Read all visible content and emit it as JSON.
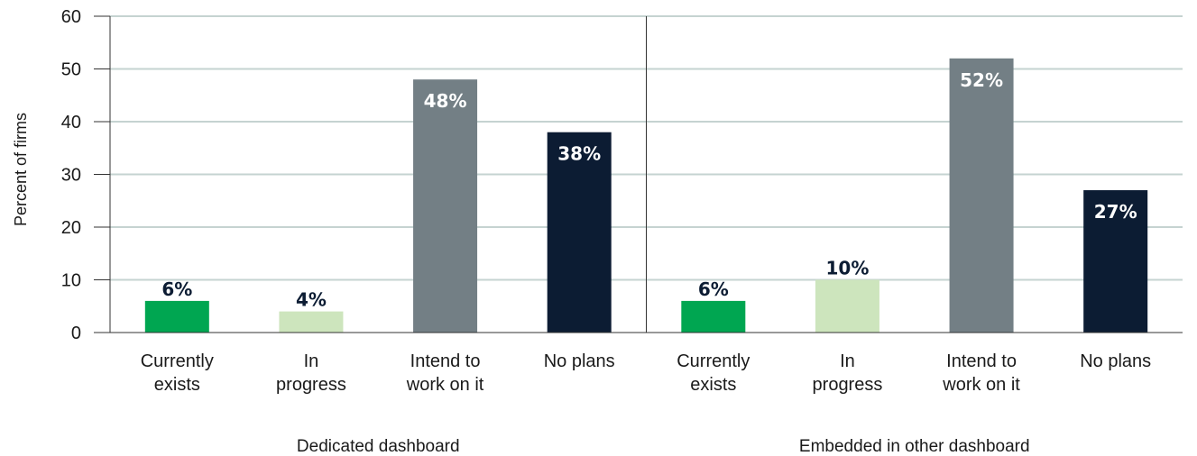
{
  "chart_data": {
    "type": "bar",
    "ylabel": "Percent of firms",
    "ylim": [
      0,
      60
    ],
    "yticks": [
      0,
      10,
      20,
      30,
      40,
      50,
      60
    ],
    "grid": true,
    "colors": {
      "Currently exists": "#00a651",
      "In progress": "#cde5bd",
      "Intend to work on it": "#737f85",
      "No plans": "#0c1c33"
    },
    "label_colors": {
      "Currently exists": "#0c1c33",
      "In progress": "#0c1c33",
      "Intend to work on it": "#ffffff",
      "No plans": "#ffffff"
    },
    "groups": [
      {
        "name": "Dedicated dashboard",
        "categories": [
          "Currently exists",
          "In progress",
          "Intend to work on it",
          "No plans"
        ],
        "category_lines": [
          [
            "Currently",
            "exists"
          ],
          [
            "In",
            "progress"
          ],
          [
            "Intend to",
            "work on it"
          ],
          [
            "No plans"
          ]
        ],
        "values": [
          6,
          4,
          48,
          38
        ],
        "labels": [
          "6%",
          "4%",
          "48%",
          "38%"
        ]
      },
      {
        "name": "Embedded in other dashboard",
        "categories": [
          "Currently exists",
          "In progress",
          "Intend to work on it",
          "No plans"
        ],
        "category_lines": [
          [
            "Currently",
            "exists"
          ],
          [
            "In",
            "progress"
          ],
          [
            "Intend to",
            "work on it"
          ],
          [
            "No plans"
          ]
        ],
        "values": [
          6,
          10,
          52,
          27
        ],
        "labels": [
          "6%",
          "10%",
          "52%",
          "27%"
        ]
      }
    ]
  }
}
